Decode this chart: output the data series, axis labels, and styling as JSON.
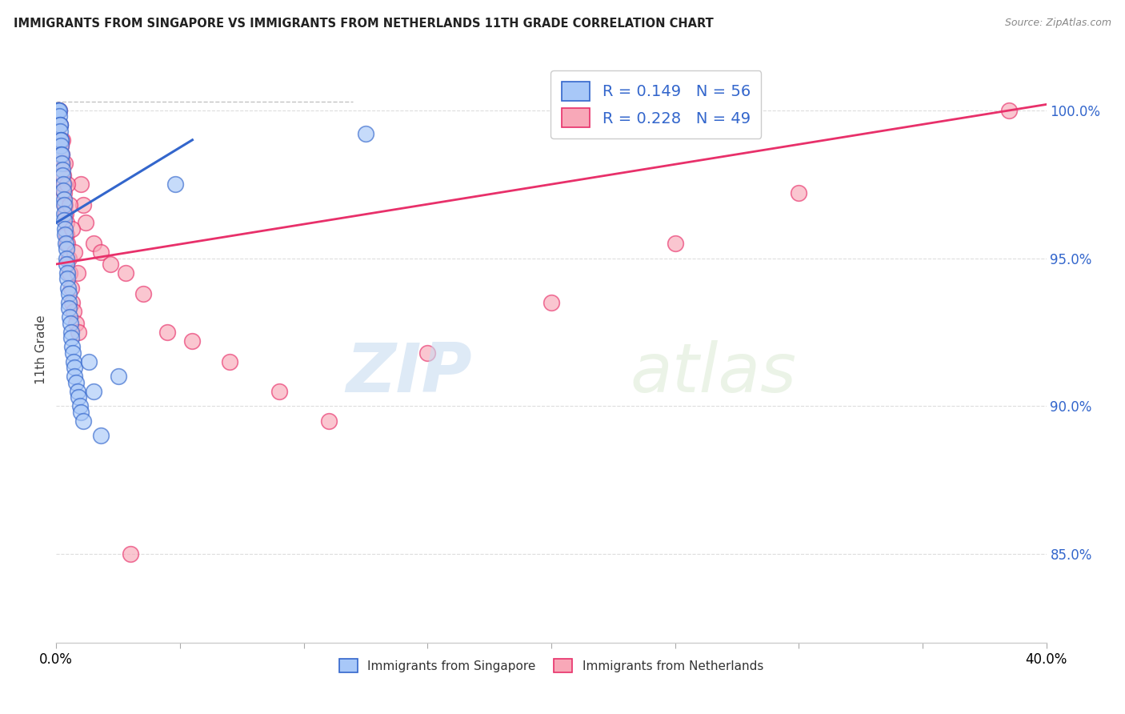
{
  "title": "IMMIGRANTS FROM SINGAPORE VS IMMIGRANTS FROM NETHERLANDS 11TH GRADE CORRELATION CHART",
  "source": "Source: ZipAtlas.com",
  "ylabel": "11th Grade",
  "xlim": [
    0.0,
    40.0
  ],
  "ylim": [
    82.0,
    101.8
  ],
  "yticks": [
    85.0,
    90.0,
    95.0,
    100.0
  ],
  "ytick_labels": [
    "85.0%",
    "90.0%",
    "95.0%",
    "100.0%"
  ],
  "xticks": [
    0.0,
    5.0,
    10.0,
    15.0,
    20.0,
    25.0,
    30.0,
    35.0,
    40.0
  ],
  "legend_r1": "0.149",
  "legend_n1": "56",
  "legend_r2": "0.228",
  "legend_n2": "49",
  "color_singapore": "#a8c8f8",
  "color_netherlands": "#f8a8b8",
  "color_singapore_line": "#3366cc",
  "color_netherlands_line": "#e8306a",
  "color_legend_text": "#3366cc",
  "watermark_zip": "ZIP",
  "watermark_atlas": "atlas",
  "sg_x": [
    0.05,
    0.08,
    0.1,
    0.1,
    0.12,
    0.12,
    0.15,
    0.15,
    0.15,
    0.18,
    0.2,
    0.2,
    0.2,
    0.22,
    0.22,
    0.25,
    0.25,
    0.28,
    0.28,
    0.3,
    0.3,
    0.3,
    0.32,
    0.35,
    0.35,
    0.38,
    0.4,
    0.4,
    0.42,
    0.45,
    0.45,
    0.48,
    0.5,
    0.5,
    0.52,
    0.55,
    0.58,
    0.6,
    0.62,
    0.65,
    0.68,
    0.7,
    0.72,
    0.75,
    0.8,
    0.85,
    0.9,
    0.95,
    1.0,
    1.1,
    1.3,
    1.5,
    1.8,
    2.5,
    4.8,
    12.5
  ],
  "sg_y": [
    100.0,
    100.0,
    100.0,
    100.0,
    100.0,
    99.8,
    99.5,
    99.5,
    99.3,
    99.0,
    99.0,
    98.8,
    98.5,
    98.5,
    98.2,
    98.0,
    97.8,
    97.5,
    97.3,
    97.0,
    96.8,
    96.5,
    96.3,
    96.0,
    95.8,
    95.5,
    95.3,
    95.0,
    94.8,
    94.5,
    94.3,
    94.0,
    93.8,
    93.5,
    93.3,
    93.0,
    92.8,
    92.5,
    92.3,
    92.0,
    91.8,
    91.5,
    91.3,
    91.0,
    90.8,
    90.5,
    90.3,
    90.0,
    89.8,
    89.5,
    91.5,
    90.5,
    89.0,
    91.0,
    97.5,
    99.2
  ],
  "nl_x": [
    0.08,
    0.1,
    0.12,
    0.15,
    0.18,
    0.2,
    0.22,
    0.25,
    0.28,
    0.3,
    0.32,
    0.35,
    0.38,
    0.4,
    0.42,
    0.45,
    0.5,
    0.55,
    0.6,
    0.65,
    0.7,
    0.8,
    0.9,
    1.0,
    1.1,
    1.2,
    1.5,
    1.8,
    2.2,
    2.8,
    3.5,
    4.5,
    5.5,
    7.0,
    9.0,
    11.0,
    15.0,
    20.0,
    25.0,
    30.0,
    0.25,
    0.35,
    0.45,
    0.55,
    0.65,
    0.75,
    0.85,
    3.0,
    38.5
  ],
  "nl_y": [
    100.0,
    100.0,
    100.0,
    99.5,
    99.0,
    98.8,
    98.5,
    98.2,
    97.8,
    97.5,
    97.2,
    96.8,
    96.5,
    96.2,
    95.8,
    95.5,
    95.0,
    94.5,
    94.0,
    93.5,
    93.2,
    92.8,
    92.5,
    97.5,
    96.8,
    96.2,
    95.5,
    95.2,
    94.8,
    94.5,
    93.8,
    92.5,
    92.2,
    91.5,
    90.5,
    89.5,
    91.8,
    93.5,
    95.5,
    97.2,
    99.0,
    98.2,
    97.5,
    96.8,
    96.0,
    95.2,
    94.5,
    85.0,
    100.0
  ],
  "sg_line_x": [
    0.0,
    5.5
  ],
  "sg_line_y": [
    96.2,
    99.0
  ],
  "nl_line_x": [
    0.0,
    40.0
  ],
  "nl_line_y": [
    94.8,
    100.2
  ],
  "dash_line_x": [
    0.0,
    12.0
  ],
  "dash_line_y": [
    100.3,
    100.3
  ]
}
